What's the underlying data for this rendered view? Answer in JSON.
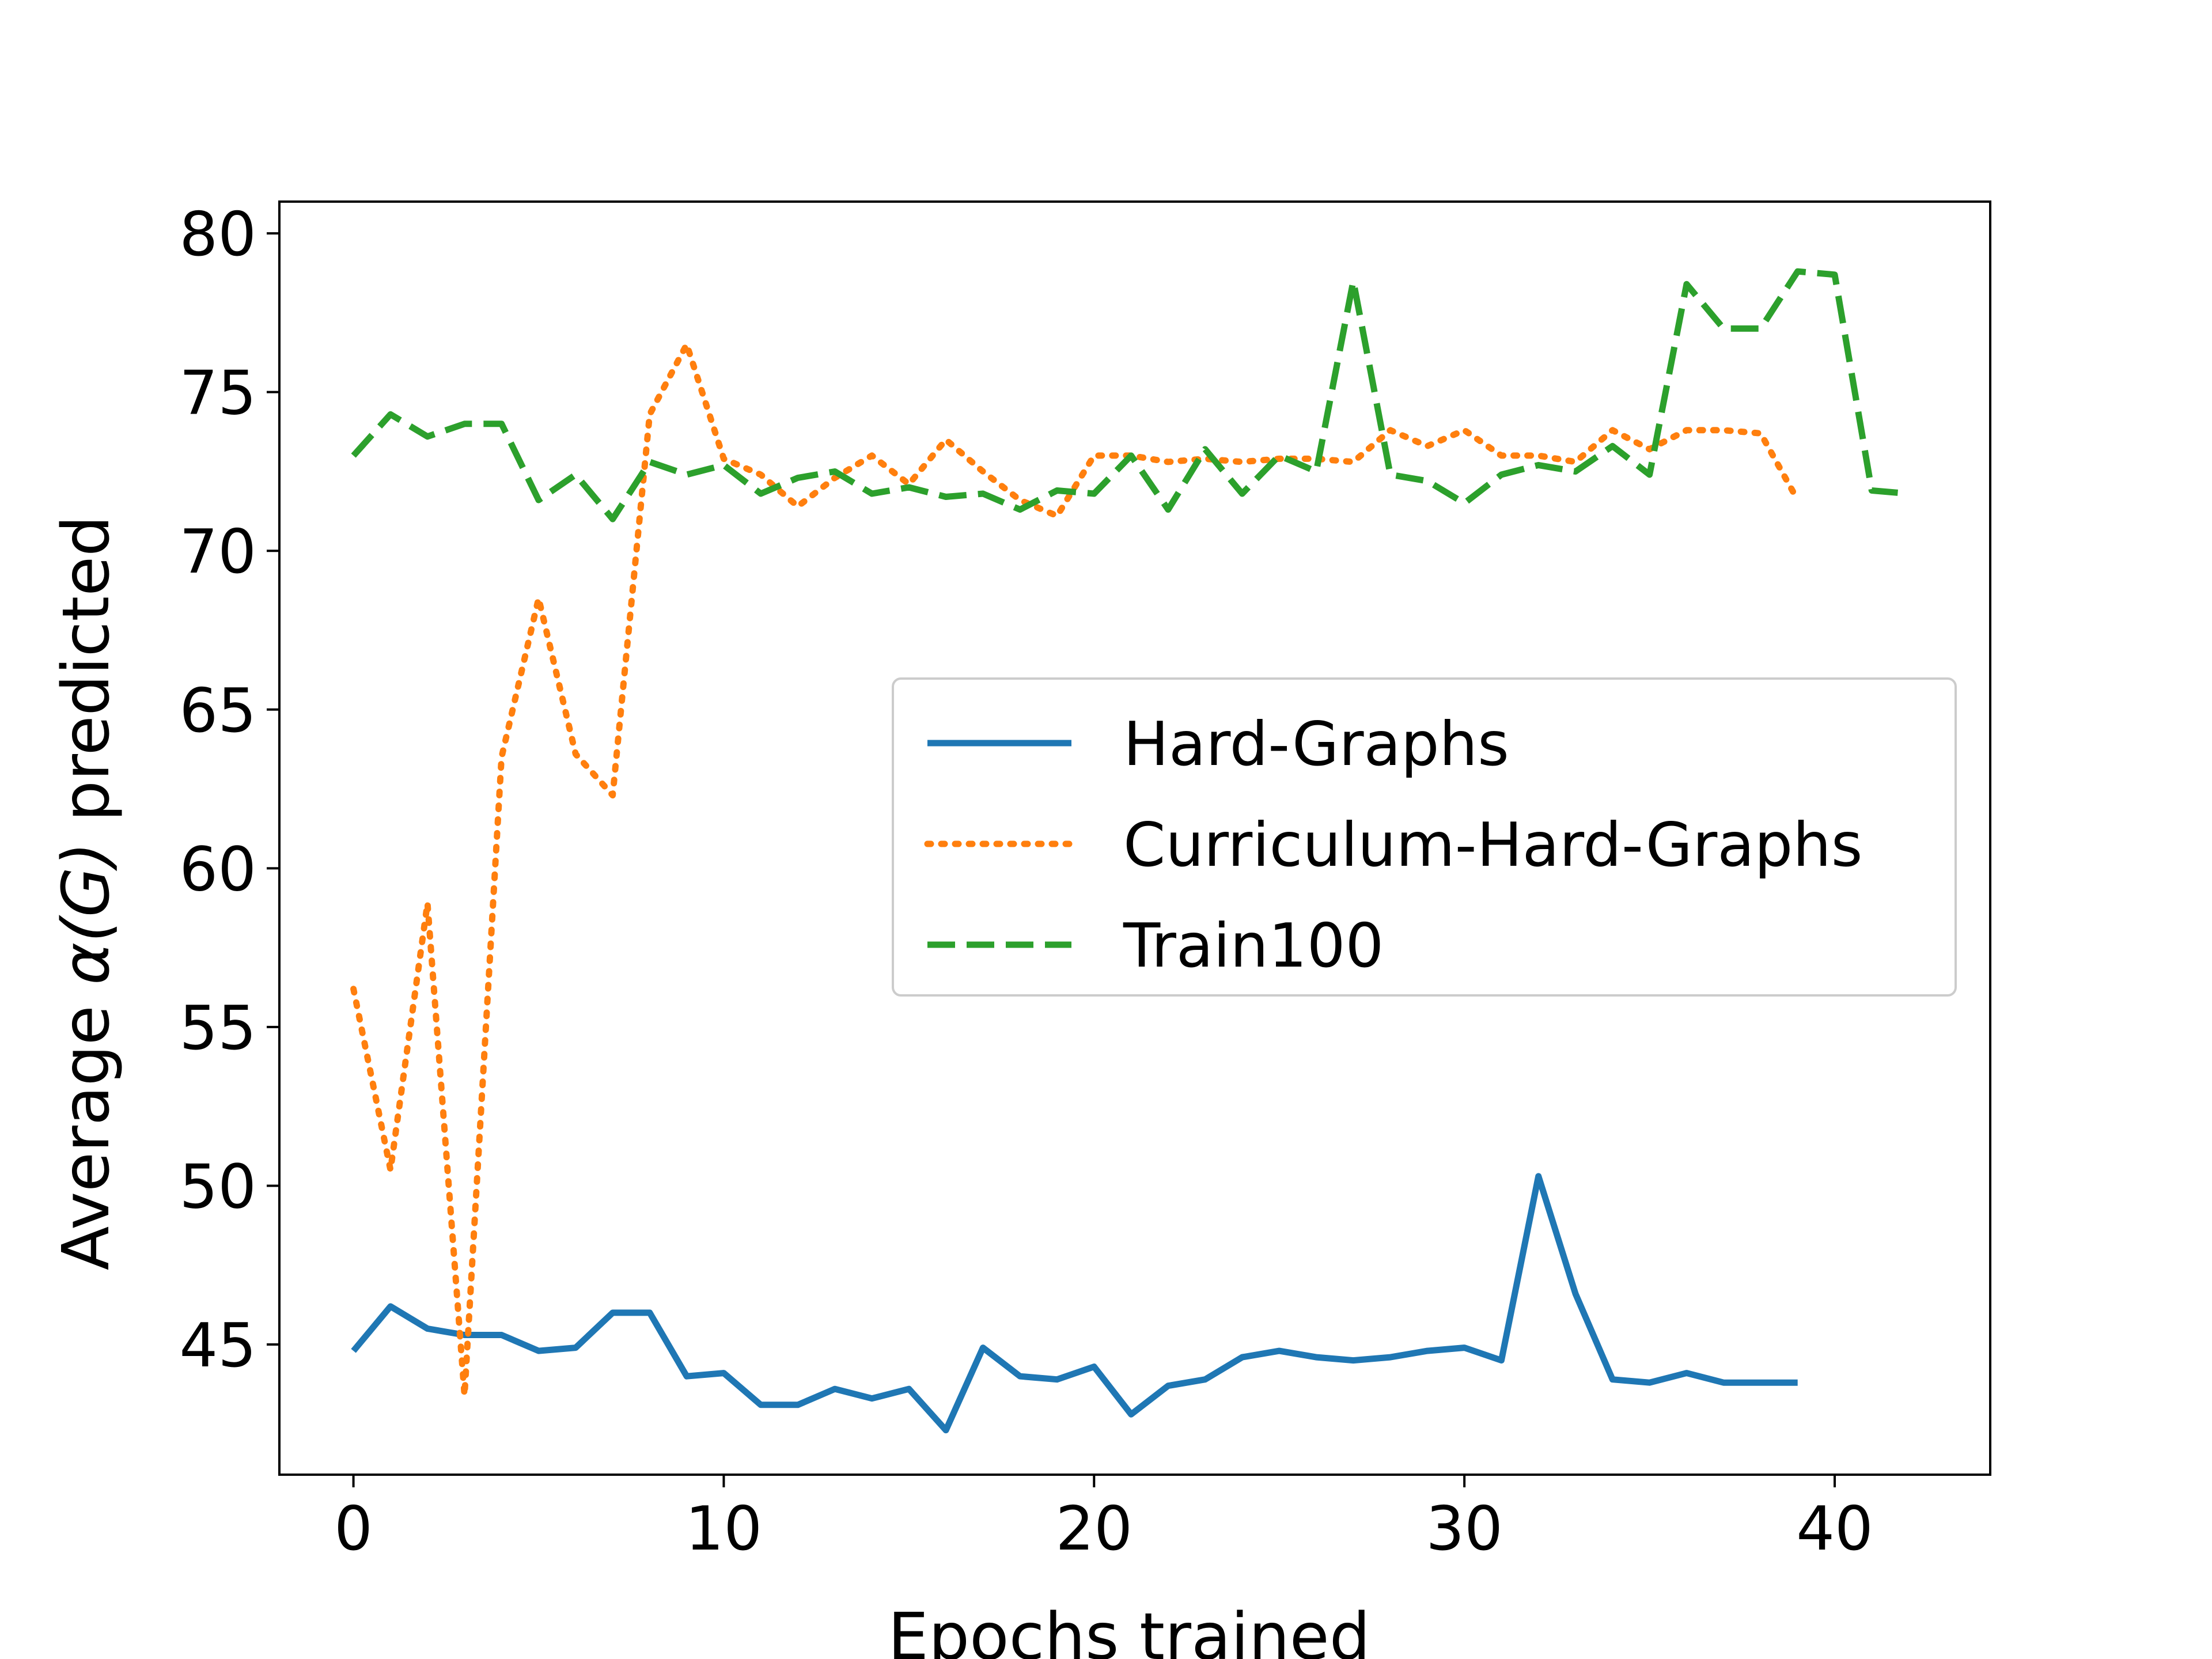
{
  "chart_data": {
    "type": "line",
    "xlabel": "Epochs trained",
    "ylabel_prefix": "Average ",
    "ylabel_math": "α(G)",
    "ylabel_suffix": " predicted",
    "xlim": [
      -2,
      44.2
    ],
    "ylim": [
      40.9,
      81.0
    ],
    "xticks": [
      0,
      10,
      20,
      30,
      40
    ],
    "yticks": [
      45,
      50,
      55,
      60,
      65,
      70,
      75,
      80
    ],
    "grid": false,
    "legend_position": "center-right",
    "series": [
      {
        "name": "Hard-Graphs",
        "color": "#1f77b4",
        "style": "solid",
        "x": [
          0,
          1,
          2,
          3,
          4,
          5,
          6,
          7,
          8,
          9,
          10,
          11,
          12,
          13,
          14,
          15,
          16,
          17,
          18,
          19,
          20,
          21,
          22,
          23,
          24,
          25,
          26,
          27,
          28,
          29,
          30,
          31,
          32,
          33,
          34,
          35,
          36,
          37,
          38,
          39
        ],
        "y": [
          44.8,
          46.2,
          45.5,
          45.3,
          45.3,
          44.8,
          44.9,
          46.0,
          46.0,
          44.0,
          44.1,
          43.1,
          43.1,
          43.6,
          43.3,
          43.6,
          42.3,
          44.9,
          44.0,
          43.9,
          44.3,
          42.8,
          43.7,
          43.9,
          44.6,
          44.8,
          44.6,
          44.5,
          44.6,
          44.8,
          44.9,
          44.5,
          50.3,
          46.6,
          43.9,
          43.8,
          44.1,
          43.8,
          43.8,
          43.8
        ]
      },
      {
        "name": "Curriculum-Hard-Graphs",
        "color": "#ff7f0e",
        "style": "dotted",
        "x": [
          0,
          1,
          2,
          3,
          4,
          5,
          6,
          7,
          8,
          9,
          10,
          11,
          12,
          13,
          14,
          15,
          16,
          17,
          18,
          19,
          20,
          21,
          22,
          23,
          24,
          25,
          26,
          27,
          28,
          29,
          30,
          31,
          32,
          33,
          34,
          35,
          36,
          37,
          38,
          39
        ],
        "y": [
          56.2,
          50.5,
          58.9,
          43.4,
          63.5,
          68.5,
          63.6,
          62.3,
          74.3,
          76.5,
          72.9,
          72.4,
          71.4,
          72.3,
          73.0,
          72.1,
          73.5,
          72.5,
          71.6,
          71.1,
          73.0,
          73.0,
          72.8,
          72.9,
          72.8,
          72.9,
          72.9,
          72.8,
          73.8,
          73.3,
          73.8,
          73.0,
          73.0,
          72.8,
          73.8,
          73.2,
          73.8,
          73.8,
          73.7,
          71.6
        ]
      },
      {
        "name": "Train100",
        "color": "#2ca02c",
        "style": "dashed",
        "x": [
          0,
          1,
          2,
          3,
          4,
          5,
          6,
          7,
          8,
          9,
          10,
          11,
          12,
          13,
          14,
          15,
          16,
          17,
          18,
          19,
          20,
          21,
          22,
          23,
          24,
          25,
          26,
          27,
          28,
          29,
          30,
          31,
          32,
          33,
          34,
          35,
          36,
          37,
          38,
          39,
          40,
          41,
          42
        ],
        "y": [
          73.0,
          74.3,
          73.6,
          74.0,
          74.0,
          71.6,
          72.4,
          71.0,
          72.8,
          72.4,
          72.7,
          71.8,
          72.3,
          72.5,
          71.8,
          72.0,
          71.7,
          71.8,
          71.3,
          71.9,
          71.8,
          73.0,
          71.3,
          73.2,
          71.8,
          73.0,
          72.5,
          78.5,
          72.4,
          72.2,
          71.5,
          72.4,
          72.7,
          72.5,
          73.3,
          72.4,
          78.4,
          77.0,
          77.0,
          78.8,
          78.7,
          71.9,
          71.8
        ]
      }
    ]
  }
}
